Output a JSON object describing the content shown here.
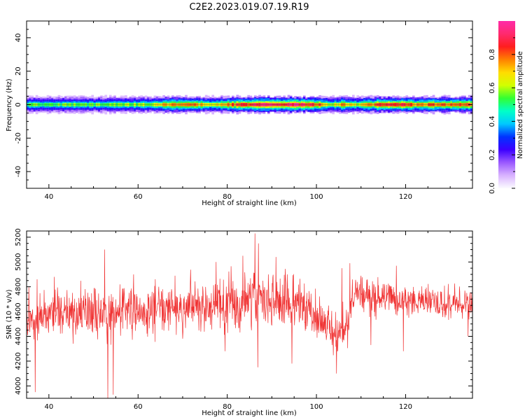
{
  "title": "C2E2.2023.019.07.19.R19",
  "colors": {
    "snr_line": "#f03232",
    "axis": "#000000",
    "background": "#ffffff",
    "colormap": [
      "#fbfbff",
      "#d9b3ff",
      "#9b59ff",
      "#3c00ff",
      "#0033ff",
      "#00c8ff",
      "#00ffc8",
      "#32ff32",
      "#d2ff00",
      "#ffdc00",
      "#ff8000",
      "#ff1e1e",
      "#ff2a6e",
      "#ff2aa8"
    ]
  },
  "chart_data": [
    {
      "type": "heatmap",
      "title": "",
      "xlabel": "Height of straight line (km)",
      "ylabel": "Frequency (Hz)",
      "xlim": [
        35,
        135
      ],
      "ylim": [
        -50,
        50
      ],
      "xticks": [
        40,
        60,
        80,
        100,
        120
      ],
      "yticks": [
        -40,
        -20,
        0,
        20,
        40
      ],
      "colorbar": {
        "label": "Normalized spectral amplitude",
        "range": [
          0,
          1
        ],
        "ticks": [
          "0.0",
          "0.2",
          "0.4",
          "0.6",
          "0.8"
        ]
      },
      "band": {
        "center_hz": 0,
        "half_width_hz": 3,
        "peak_amplitude_profile": [
          {
            "x": 35,
            "v": 0.55
          },
          {
            "x": 45,
            "v": 0.55
          },
          {
            "x": 55,
            "v": 0.55
          },
          {
            "x": 62,
            "v": 0.6
          },
          {
            "x": 66,
            "v": 0.72
          },
          {
            "x": 72,
            "v": 0.78
          },
          {
            "x": 76,
            "v": 0.6
          },
          {
            "x": 80,
            "v": 0.78
          },
          {
            "x": 85,
            "v": 0.88
          },
          {
            "x": 90,
            "v": 0.92
          },
          {
            "x": 96,
            "v": 0.92
          },
          {
            "x": 100,
            "v": 0.85
          },
          {
            "x": 103,
            "v": 0.6
          },
          {
            "x": 106,
            "v": 0.75
          },
          {
            "x": 109,
            "v": 0.6
          },
          {
            "x": 112,
            "v": 0.78
          },
          {
            "x": 116,
            "v": 0.85
          },
          {
            "x": 122,
            "v": 0.78
          },
          {
            "x": 128,
            "v": 0.78
          },
          {
            "x": 135,
            "v": 0.82
          }
        ]
      }
    },
    {
      "type": "line",
      "title": "",
      "xlabel": "Height of straight line (km)",
      "ylabel": "SNR (10 * v/v)",
      "xlim": [
        35,
        135
      ],
      "ylim": [
        3900,
        5250
      ],
      "xticks": [
        40,
        60,
        80,
        100,
        120
      ],
      "yticks": [
        4000,
        4200,
        4400,
        4600,
        4800,
        5000,
        5200
      ],
      "series": [
        {
          "x": [
            35,
            36,
            37,
            38,
            39,
            40,
            41,
            42,
            43,
            44,
            45,
            46,
            47,
            48,
            49,
            50,
            51,
            52,
            53,
            54,
            55,
            56,
            57,
            58,
            59,
            60,
            61,
            62,
            63,
            64,
            65,
            66,
            67,
            68,
            69,
            70,
            71,
            72,
            73,
            74,
            75,
            76,
            77,
            78,
            79,
            80,
            81,
            82,
            83,
            84,
            85,
            86,
            87,
            88,
            89,
            90,
            91,
            92,
            93,
            94,
            95,
            96,
            97,
            98,
            99,
            100,
            101,
            102,
            103,
            104,
            105,
            106,
            107,
            108,
            109,
            110,
            111,
            112,
            113,
            114,
            115,
            116,
            117,
            118,
            119,
            120,
            121,
            122,
            123,
            124,
            125,
            126,
            127,
            128,
            129,
            130,
            131,
            132,
            133,
            134,
            135
          ],
          "values": [
            4580,
            4520,
            4480,
            4560,
            4600,
            4540,
            4580,
            4600,
            4560,
            4620,
            4580,
            4560,
            4600,
            4620,
            4580,
            4600,
            4620,
            4560,
            4520,
            4580,
            4560,
            4600,
            4620,
            4640,
            4600,
            4620,
            4580,
            4560,
            4600,
            4620,
            4640,
            4600,
            4620,
            4640,
            4660,
            4620,
            4640,
            4680,
            4600,
            4640,
            4660,
            4620,
            4640,
            4680,
            4640,
            4660,
            4700,
            4640,
            4660,
            4680,
            4700,
            4720,
            4660,
            4640,
            4700,
            4680,
            4660,
            4700,
            4680,
            4640,
            4660,
            4680,
            4640,
            4620,
            4580,
            4560,
            4520,
            4500,
            4480,
            4420,
            4400,
            4460,
            4520,
            4720,
            4740,
            4720,
            4700,
            4700,
            4720,
            4700,
            4720,
            4740,
            4700,
            4680,
            4680,
            4700,
            4680,
            4660,
            4680,
            4700,
            4680,
            4660,
            4640,
            4660,
            4640,
            4660,
            4680,
            4660,
            4640,
            4680,
            4660
          ],
          "spread": [
            250,
            260,
            280,
            260,
            250,
            240,
            250,
            260,
            250,
            250,
            240,
            250,
            240,
            250,
            260,
            250,
            260,
            270,
            300,
            280,
            260,
            250,
            240,
            250,
            240,
            240,
            250,
            240,
            240,
            250,
            240,
            250,
            240,
            250,
            240,
            250,
            240,
            250,
            260,
            250,
            240,
            250,
            250,
            260,
            250,
            260,
            270,
            260,
            260,
            260,
            280,
            300,
            280,
            270,
            260,
            260,
            270,
            260,
            260,
            260,
            250,
            250,
            260,
            250,
            250,
            250,
            240,
            240,
            250,
            260,
            270,
            250,
            240,
            200,
            190,
            190,
            180,
            180,
            180,
            180,
            180,
            180,
            180,
            170,
            170,
            170,
            170,
            170,
            170,
            170,
            170,
            170,
            170,
            170,
            170,
            170,
            170,
            170,
            170,
            170,
            170
          ],
          "spikes": [
            {
              "x": 36.9,
              "y": 3950
            },
            {
              "x": 37.3,
              "y": 4860
            },
            {
              "x": 41.2,
              "y": 4880
            },
            {
              "x": 52.5,
              "y": 5100
            },
            {
              "x": 53.2,
              "y": 3900
            },
            {
              "x": 54.4,
              "y": 3930
            },
            {
              "x": 59.0,
              "y": 4900
            },
            {
              "x": 77.5,
              "y": 5000
            },
            {
              "x": 79.5,
              "y": 4280
            },
            {
              "x": 83.5,
              "y": 5050
            },
            {
              "x": 86.2,
              "y": 5230
            },
            {
              "x": 87.0,
              "y": 5150
            },
            {
              "x": 86.8,
              "y": 4150
            },
            {
              "x": 89.2,
              "y": 4900
            },
            {
              "x": 90.9,
              "y": 5040
            },
            {
              "x": 93.5,
              "y": 4900
            },
            {
              "x": 94.5,
              "y": 4180
            },
            {
              "x": 104.5,
              "y": 4100
            },
            {
              "x": 105.7,
              "y": 4950
            },
            {
              "x": 107.5,
              "y": 4990
            },
            {
              "x": 112.2,
              "y": 4330
            },
            {
              "x": 117.9,
              "y": 4970
            },
            {
              "x": 119.5,
              "y": 4280
            },
            {
              "x": 134.0,
              "y": 4400
            }
          ]
        }
      ]
    }
  ]
}
